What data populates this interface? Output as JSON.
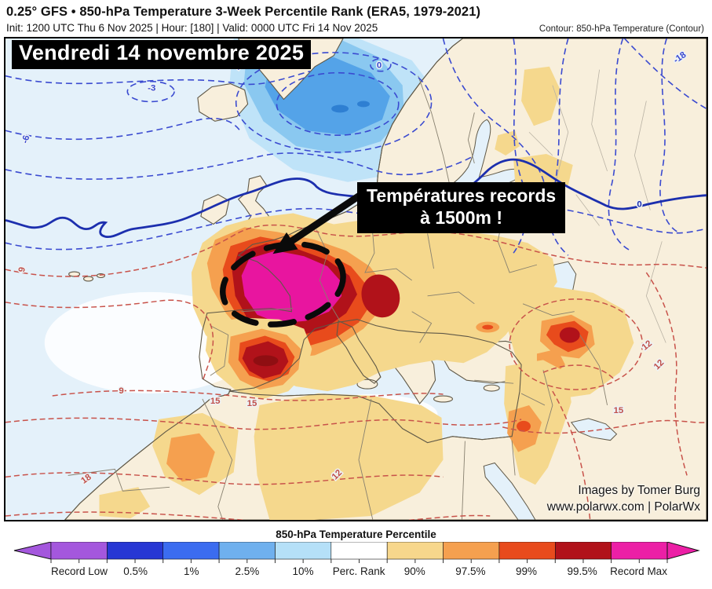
{
  "header": {
    "title": "0.25° GFS • 850-hPa Temperature 3-Week Percentile Rank (ERA5, 1979-2021)",
    "subtitle": "Init: 1200 UTC Thu 6 Nov 2025 | Hour: [180] | Valid: 0000 UTC Fri 14 Nov 2025",
    "contour_note": "Contour: 850-hPa Temperature (Contour)"
  },
  "map": {
    "date_label": "Vendredi 14 novembre 2025",
    "annotation_line1": "Températures records",
    "annotation_line2": "à 1500m !",
    "credit_line1": "Images by Tomer Burg",
    "credit_line2": "www.polarwx.com | PolarWx",
    "contour_labels": {
      "blue": [
        "-3",
        "-6",
        "0",
        "-18",
        "0",
        "-9"
      ],
      "red": [
        "9",
        "9",
        "15",
        "15",
        "18",
        "12",
        "12",
        "12",
        "15"
      ]
    }
  },
  "colorbar": {
    "title": "850-hPa Temperature Percentile",
    "labels": [
      "Record Low",
      "0.5%",
      "1%",
      "2.5%",
      "10%",
      "Perc. Rank",
      "90%",
      "97.5%",
      "99%",
      "99.5%",
      "Record Max"
    ],
    "colors": [
      "#a457dd",
      "#2737d4",
      "#3b6cf0",
      "#6fb0ee",
      "#b5e0f8",
      "#ffffff",
      "#f7d78c",
      "#f5a04f",
      "#e84b1c",
      "#b1121a",
      "#ec1fa6"
    ]
  }
}
